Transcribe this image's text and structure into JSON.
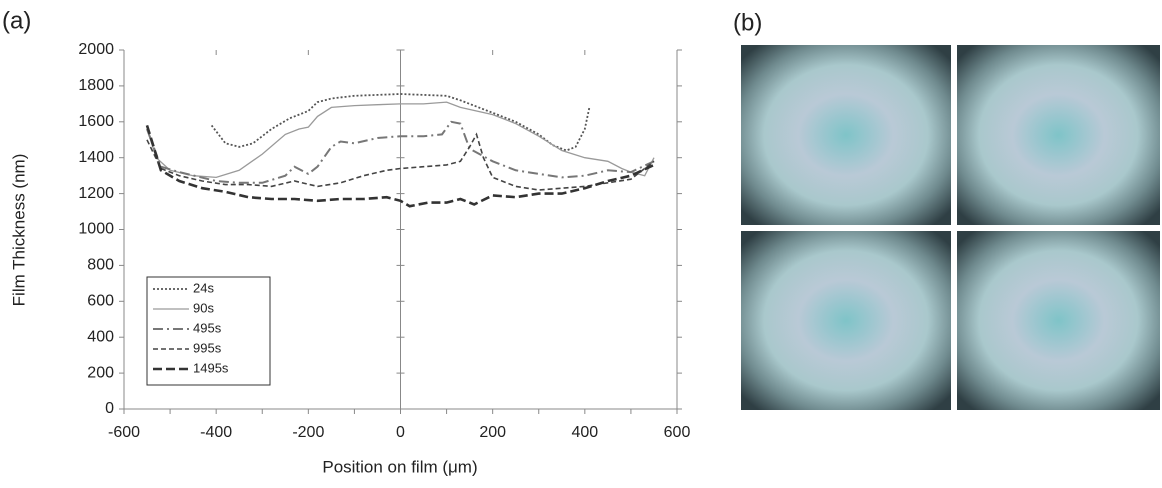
{
  "panel_labels": [
    "(a)",
    "(b)"
  ],
  "chart_data": {
    "type": "line",
    "xlabel": "Position on film (μm)",
    "ylabel": "Film Thickness (nm)",
    "xlim": [
      -600,
      600
    ],
    "xticks": [
      -600,
      -400,
      -200,
      0,
      200,
      400,
      600
    ],
    "ylim": [
      0,
      2000
    ],
    "yticks": [
      0,
      200,
      400,
      600,
      800,
      1000,
      1200,
      1400,
      1600,
      1800,
      2000
    ],
    "legend": "lower left",
    "series": [
      {
        "name": "24s",
        "color": "#555555",
        "dash": "dotted",
        "x": [
          -410,
          -380,
          -350,
          -320,
          -280,
          -240,
          -200,
          -180,
          -150,
          -100,
          -50,
          0,
          50,
          100,
          130,
          150,
          200,
          250,
          300,
          330,
          360,
          380,
          400,
          410
        ],
        "values": [
          1580,
          1480,
          1460,
          1480,
          1560,
          1620,
          1660,
          1710,
          1730,
          1745,
          1750,
          1755,
          1750,
          1745,
          1720,
          1700,
          1650,
          1600,
          1530,
          1470,
          1440,
          1460,
          1560,
          1680
        ]
      },
      {
        "name": "90s",
        "color": "#9a9a9a",
        "dash": "solid",
        "x": [
          -550,
          -530,
          -500,
          -450,
          -400,
          -350,
          -300,
          -250,
          -220,
          -200,
          -180,
          -150,
          -100,
          -50,
          0,
          50,
          100,
          130,
          200,
          250,
          300,
          350,
          400,
          450,
          480,
          500,
          530,
          550
        ],
        "values": [
          1560,
          1400,
          1330,
          1300,
          1290,
          1330,
          1420,
          1530,
          1560,
          1570,
          1630,
          1680,
          1690,
          1695,
          1700,
          1700,
          1710,
          1680,
          1640,
          1590,
          1520,
          1440,
          1400,
          1380,
          1340,
          1320,
          1300,
          1400
        ]
      },
      {
        "name": "495s",
        "color": "#777777",
        "dash": "dashdot",
        "x": [
          -550,
          -520,
          -480,
          -400,
          -350,
          -300,
          -250,
          -230,
          -200,
          -180,
          -150,
          -130,
          -100,
          -50,
          0,
          50,
          90,
          110,
          130,
          150,
          200,
          250,
          300,
          350,
          400,
          450,
          500,
          550
        ],
        "values": [
          1560,
          1350,
          1320,
          1270,
          1260,
          1260,
          1300,
          1350,
          1310,
          1350,
          1460,
          1490,
          1480,
          1510,
          1520,
          1520,
          1530,
          1600,
          1590,
          1450,
          1380,
          1330,
          1310,
          1290,
          1300,
          1330,
          1320,
          1380
        ]
      },
      {
        "name": "995s",
        "color": "#444444",
        "dash": "dashed",
        "x": [
          -550,
          -520,
          -480,
          -430,
          -380,
          -330,
          -280,
          -230,
          -180,
          -130,
          -80,
          -30,
          0,
          50,
          100,
          130,
          150,
          165,
          180,
          200,
          250,
          300,
          350,
          400,
          450,
          500,
          550
        ],
        "values": [
          1500,
          1340,
          1300,
          1270,
          1250,
          1250,
          1240,
          1270,
          1240,
          1260,
          1300,
          1330,
          1340,
          1350,
          1360,
          1380,
          1460,
          1530,
          1400,
          1290,
          1240,
          1220,
          1230,
          1240,
          1260,
          1280,
          1380
        ]
      },
      {
        "name": "1495s",
        "color": "#333333",
        "dash": "longdash",
        "x": [
          -550,
          -520,
          -480,
          -430,
          -380,
          -330,
          -280,
          -230,
          -180,
          -130,
          -80,
          -30,
          0,
          20,
          60,
          100,
          130,
          160,
          200,
          250,
          300,
          350,
          400,
          450,
          500,
          550
        ],
        "values": [
          1580,
          1330,
          1270,
          1230,
          1210,
          1180,
          1170,
          1170,
          1160,
          1170,
          1170,
          1180,
          1160,
          1130,
          1150,
          1150,
          1170,
          1140,
          1190,
          1180,
          1200,
          1200,
          1230,
          1270,
          1300,
          1360
        ]
      }
    ]
  }
}
